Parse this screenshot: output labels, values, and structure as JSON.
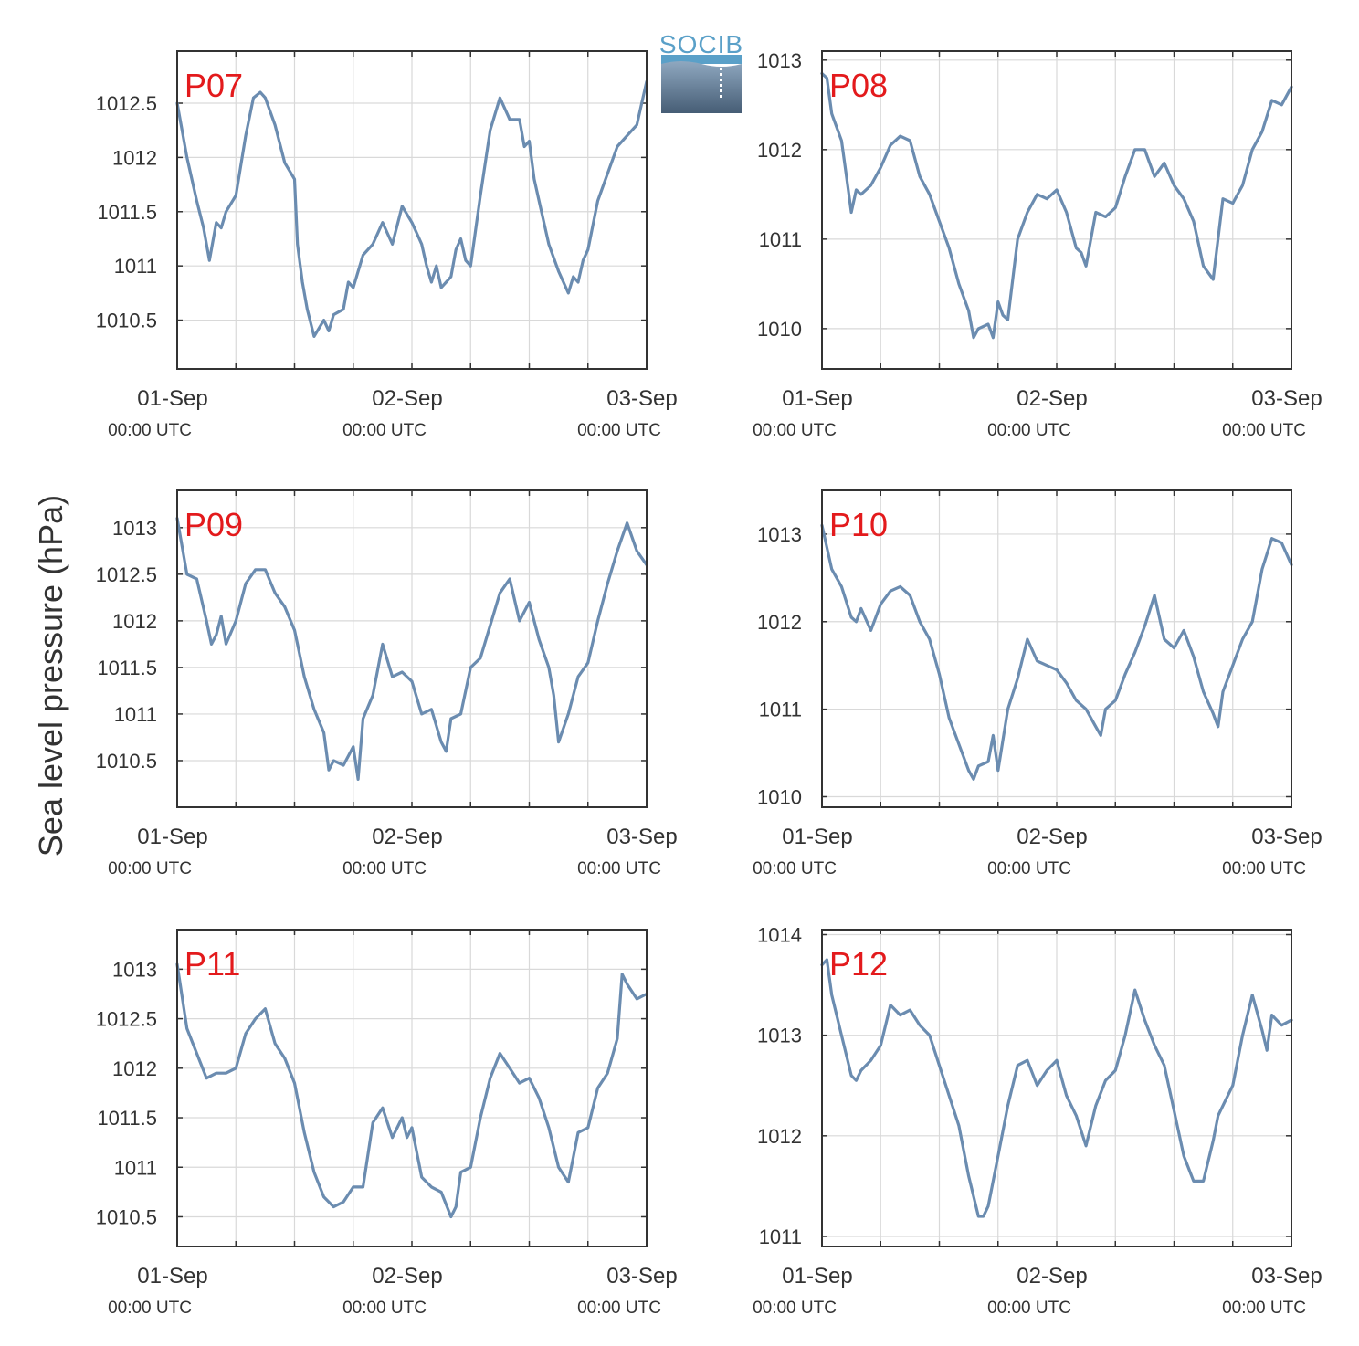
{
  "figure": {
    "ylabel": "Sea level pressure (hPa)",
    "logo_text": "SOCIB",
    "colors": {
      "line": "#6b8cb0",
      "label": "#e31a1c",
      "grid": "#d9d9d9",
      "axis": "#333333"
    }
  },
  "chart_data": [
    {
      "type": "line",
      "panel": "P07",
      "xticks": [
        {
          "label": "01-Sep",
          "sub": "00:00 UTC"
        },
        {
          "label": "02-Sep",
          "sub": "00:00 UTC"
        },
        {
          "label": "03-Sep",
          "sub": "00:00 UTC"
        }
      ],
      "xrange_hours": [
        0,
        48
      ],
      "ylim": [
        1010.05,
        1012.98
      ],
      "yticks": [
        1010.5,
        1011,
        1011.5,
        1012,
        1012.5
      ],
      "ytick_labels": [
        "1010.5",
        "1011",
        "1011.5",
        "1012",
        "1012.5"
      ],
      "series": [
        {
          "x": [
            0,
            1,
            2,
            2.7,
            3.3,
            4,
            4.5,
            5,
            6,
            7,
            7.8,
            8.5,
            9,
            10,
            11,
            12,
            12.3,
            12.8,
            13.3,
            14,
            15,
            15.5,
            16,
            17,
            17.5,
            18,
            19,
            20,
            21,
            22,
            23,
            24,
            24.5,
            25,
            25.5,
            26,
            26.5,
            27,
            27.5,
            28,
            28.5,
            29,
            29.5,
            30,
            31,
            32,
            33,
            34,
            35,
            35.5,
            36,
            36.5,
            37,
            38,
            39,
            40,
            40.5,
            41,
            41.5,
            42,
            43,
            44,
            45,
            46,
            47,
            48
          ],
          "y": [
            1012.5,
            1012,
            1011.6,
            1011.35,
            1011.05,
            1011.4,
            1011.35,
            1011.5,
            1011.65,
            1012.2,
            1012.55,
            1012.6,
            1012.55,
            1012.3,
            1011.95,
            1011.8,
            1011.2,
            1010.85,
            1010.6,
            1010.35,
            1010.5,
            1010.4,
            1010.55,
            1010.6,
            1010.85,
            1010.8,
            1011.1,
            1011.2,
            1011.4,
            1011.2,
            1011.55,
            1011.4,
            1011.3,
            1011.2,
            1011.0,
            1010.85,
            1011.0,
            1010.8,
            1010.85,
            1010.9,
            1011.15,
            1011.25,
            1011.05,
            1011.0,
            1011.65,
            1012.25,
            1012.55,
            1012.35,
            1012.35,
            1012.1,
            1012.15,
            1011.8,
            1011.6,
            1011.2,
            1010.95,
            1010.75,
            1010.9,
            1010.85,
            1011.05,
            1011.15,
            1011.6,
            1011.85,
            1012.1,
            1012.2,
            1012.3,
            1012.7
          ]
        }
      ]
    },
    {
      "type": "line",
      "panel": "P08",
      "xticks": [
        {
          "label": "01-Sep",
          "sub": "00:00 UTC"
        },
        {
          "label": "02-Sep",
          "sub": "00:00 UTC"
        },
        {
          "label": "03-Sep",
          "sub": "00:00 UTC"
        }
      ],
      "xrange_hours": [
        0,
        48
      ],
      "ylim": [
        1009.55,
        1013.1
      ],
      "yticks": [
        1010,
        1011,
        1012,
        1013
      ],
      "ytick_labels": [
        "1010",
        "1011",
        "1012",
        "1013"
      ],
      "series": [
        {
          "x": [
            0,
            0.5,
            1,
            2,
            2.5,
            3,
            3.5,
            4,
            5,
            6,
            7,
            8,
            9,
            10,
            11,
            12,
            13,
            14,
            15,
            15.5,
            16,
            17,
            17.5,
            18,
            18.5,
            19,
            20,
            21,
            22,
            23,
            24,
            25,
            26,
            26.5,
            27,
            28,
            29,
            30,
            31,
            32,
            33,
            34,
            35,
            36,
            37,
            38,
            39,
            40,
            41,
            42,
            42.5,
            43,
            44,
            45,
            46,
            47,
            48
          ],
          "y": [
            1012.85,
            1012.8,
            1012.4,
            1012.1,
            1011.7,
            1011.3,
            1011.55,
            1011.5,
            1011.6,
            1011.8,
            1012.05,
            1012.15,
            1012.1,
            1011.7,
            1011.5,
            1011.2,
            1010.9,
            1010.5,
            1010.2,
            1009.9,
            1010.0,
            1010.05,
            1009.9,
            1010.3,
            1010.15,
            1010.1,
            1011.0,
            1011.3,
            1011.5,
            1011.45,
            1011.55,
            1011.3,
            1010.9,
            1010.85,
            1010.7,
            1011.3,
            1011.25,
            1011.35,
            1011.7,
            1012.0,
            1012.0,
            1011.7,
            1011.85,
            1011.6,
            1011.45,
            1011.2,
            1010.7,
            1010.55,
            1011.45,
            1011.4,
            1011.5,
            1011.6,
            1012.0,
            1012.2,
            1012.55,
            1012.5,
            1012.7
          ]
        }
      ]
    },
    {
      "type": "line",
      "panel": "P09",
      "xticks": [
        {
          "label": "01-Sep",
          "sub": "00:00 UTC"
        },
        {
          "label": "02-Sep",
          "sub": "00:00 UTC"
        },
        {
          "label": "03-Sep",
          "sub": "00:00 UTC"
        }
      ],
      "xrange_hours": [
        0,
        48
      ],
      "ylim": [
        1010.0,
        1013.4
      ],
      "yticks": [
        1010.5,
        1011,
        1011.5,
        1012,
        1012.5,
        1013
      ],
      "ytick_labels": [
        "1010.5",
        "1011",
        "1011.5",
        "1012",
        "1012.5",
        "1013"
      ],
      "series": [
        {
          "x": [
            0,
            1,
            2,
            3,
            3.5,
            4,
            4.5,
            5,
            6,
            7,
            8,
            9,
            10,
            11,
            12,
            13,
            14,
            15,
            15.5,
            16,
            17,
            18,
            18.5,
            19,
            20,
            21,
            22,
            23,
            24,
            25,
            26,
            27,
            27.5,
            28,
            29,
            30,
            31,
            32,
            33,
            34,
            35,
            36,
            37,
            38,
            38.5,
            39,
            40,
            41,
            42,
            43,
            44,
            45,
            46,
            47,
            48
          ],
          "y": [
            1013.1,
            1012.5,
            1012.45,
            1012.0,
            1011.75,
            1011.85,
            1012.05,
            1011.75,
            1012.0,
            1012.4,
            1012.55,
            1012.55,
            1012.3,
            1012.15,
            1011.9,
            1011.4,
            1011.05,
            1010.8,
            1010.4,
            1010.5,
            1010.45,
            1010.65,
            1010.3,
            1010.95,
            1011.2,
            1011.75,
            1011.4,
            1011.45,
            1011.35,
            1011.0,
            1011.05,
            1010.7,
            1010.6,
            1010.95,
            1011.0,
            1011.5,
            1011.6,
            1011.95,
            1012.3,
            1012.45,
            1012.0,
            1012.2,
            1011.8,
            1011.5,
            1011.2,
            1010.7,
            1011.0,
            1011.4,
            1011.55,
            1012.0,
            1012.4,
            1012.75,
            1013.05,
            1012.75,
            1012.6
          ]
        }
      ]
    },
    {
      "type": "line",
      "panel": "P10",
      "xticks": [
        {
          "label": "01-Sep",
          "sub": "00:00 UTC"
        },
        {
          "label": "02-Sep",
          "sub": "00:00 UTC"
        },
        {
          "label": "03-Sep",
          "sub": "00:00 UTC"
        }
      ],
      "xrange_hours": [
        0,
        48
      ],
      "ylim": [
        1009.88,
        1013.5
      ],
      "yticks": [
        1010,
        1011,
        1012,
        1013
      ],
      "ytick_labels": [
        "1010",
        "1011",
        "1012",
        "1013"
      ],
      "series": [
        {
          "x": [
            0,
            1,
            2,
            3,
            3.5,
            4,
            5,
            6,
            7,
            8,
            9,
            10,
            11,
            12,
            13,
            14,
            15,
            15.5,
            16,
            17,
            17.5,
            18,
            19,
            20,
            21,
            22,
            23,
            24,
            25,
            26,
            27,
            28,
            28.5,
            29,
            30,
            31,
            32,
            33,
            34,
            35,
            36,
            37,
            38,
            39,
            40,
            40.5,
            41,
            42,
            43,
            44,
            45,
            46,
            47,
            48
          ],
          "y": [
            1013.1,
            1012.6,
            1012.4,
            1012.05,
            1012.0,
            1012.15,
            1011.9,
            1012.2,
            1012.35,
            1012.4,
            1012.3,
            1012.0,
            1011.8,
            1011.4,
            1010.9,
            1010.6,
            1010.3,
            1010.2,
            1010.35,
            1010.4,
            1010.7,
            1010.3,
            1011.0,
            1011.35,
            1011.8,
            1011.55,
            1011.5,
            1011.45,
            1011.3,
            1011.1,
            1011.0,
            1010.8,
            1010.7,
            1011.0,
            1011.1,
            1011.4,
            1011.65,
            1011.95,
            1012.3,
            1011.8,
            1011.7,
            1011.9,
            1011.6,
            1011.2,
            1010.95,
            1010.8,
            1011.2,
            1011.5,
            1011.8,
            1012.0,
            1012.6,
            1012.95,
            1012.9,
            1012.65
          ]
        }
      ]
    },
    {
      "type": "line",
      "panel": "P11",
      "xticks": [
        {
          "label": "01-Sep",
          "sub": "00:00 UTC"
        },
        {
          "label": "02-Sep",
          "sub": "00:00 UTC"
        },
        {
          "label": "03-Sep",
          "sub": "00:00 UTC"
        }
      ],
      "xrange_hours": [
        0,
        48
      ],
      "ylim": [
        1010.2,
        1013.4
      ],
      "yticks": [
        1010.5,
        1011,
        1011.5,
        1012,
        1012.5,
        1013
      ],
      "ytick_labels": [
        "1010.5",
        "1011",
        "1011.5",
        "1012",
        "1012.5",
        "1013"
      ],
      "series": [
        {
          "x": [
            0,
            1,
            2,
            3,
            4,
            5,
            6,
            7,
            8,
            9,
            10,
            11,
            12,
            13,
            14,
            15,
            16,
            17,
            18,
            19,
            20,
            21,
            22,
            23,
            23.5,
            24,
            25,
            26,
            27,
            28,
            28.5,
            29,
            30,
            31,
            32,
            33,
            34,
            35,
            36,
            37,
            38,
            39,
            40,
            40.5,
            41,
            42,
            43,
            44,
            45,
            45.5,
            46,
            47,
            48
          ],
          "y": [
            1013.05,
            1012.4,
            1012.15,
            1011.9,
            1011.95,
            1011.95,
            1012.0,
            1012.35,
            1012.5,
            1012.6,
            1012.25,
            1012.1,
            1011.85,
            1011.35,
            1010.95,
            1010.7,
            1010.6,
            1010.65,
            1010.8,
            1010.8,
            1011.45,
            1011.6,
            1011.3,
            1011.5,
            1011.3,
            1011.4,
            1010.9,
            1010.8,
            1010.75,
            1010.5,
            1010.6,
            1010.95,
            1011.0,
            1011.5,
            1011.9,
            1012.15,
            1012.0,
            1011.85,
            1011.9,
            1011.7,
            1011.4,
            1011.0,
            1010.85,
            1011.1,
            1011.35,
            1011.4,
            1011.8,
            1011.95,
            1012.3,
            1012.95,
            1012.85,
            1012.7,
            1012.75
          ]
        }
      ]
    },
    {
      "type": "line",
      "panel": "P12",
      "xticks": [
        {
          "label": "01-Sep",
          "sub": "00:00 UTC"
        },
        {
          "label": "02-Sep",
          "sub": "00:00 UTC"
        },
        {
          "label": "03-Sep",
          "sub": "00:00 UTC"
        }
      ],
      "xrange_hours": [
        0,
        48
      ],
      "ylim": [
        1010.9,
        1014.05
      ],
      "yticks": [
        1011,
        1012,
        1013,
        1014
      ],
      "ytick_labels": [
        "1011",
        "1012",
        "1013",
        "1014"
      ],
      "series": [
        {
          "x": [
            0,
            0.5,
            1,
            2,
            3,
            3.5,
            4,
            5,
            6,
            7,
            8,
            9,
            10,
            11,
            12,
            13,
            14,
            15,
            16,
            16.5,
            17,
            18,
            19,
            20,
            21,
            22,
            23,
            24,
            25,
            26,
            27,
            28,
            29,
            30,
            31,
            32,
            33,
            34,
            35,
            36,
            37,
            38,
            39,
            40,
            40.5,
            41,
            42,
            43,
            44,
            45,
            45.5,
            46,
            47,
            48
          ],
          "y": [
            1013.7,
            1013.75,
            1013.4,
            1013.0,
            1012.6,
            1012.55,
            1012.65,
            1012.75,
            1012.9,
            1013.3,
            1013.2,
            1013.25,
            1013.1,
            1013.0,
            1012.7,
            1012.4,
            1012.1,
            1011.6,
            1011.2,
            1011.2,
            1011.3,
            1011.8,
            1012.3,
            1012.7,
            1012.75,
            1012.5,
            1012.65,
            1012.75,
            1012.4,
            1012.2,
            1011.9,
            1012.3,
            1012.55,
            1012.65,
            1013.0,
            1013.45,
            1013.15,
            1012.9,
            1012.7,
            1012.25,
            1011.8,
            1011.55,
            1011.55,
            1011.95,
            1012.2,
            1012.3,
            1012.5,
            1013.0,
            1013.4,
            1013.05,
            1012.85,
            1013.2,
            1013.1,
            1013.15
          ]
        }
      ]
    }
  ]
}
